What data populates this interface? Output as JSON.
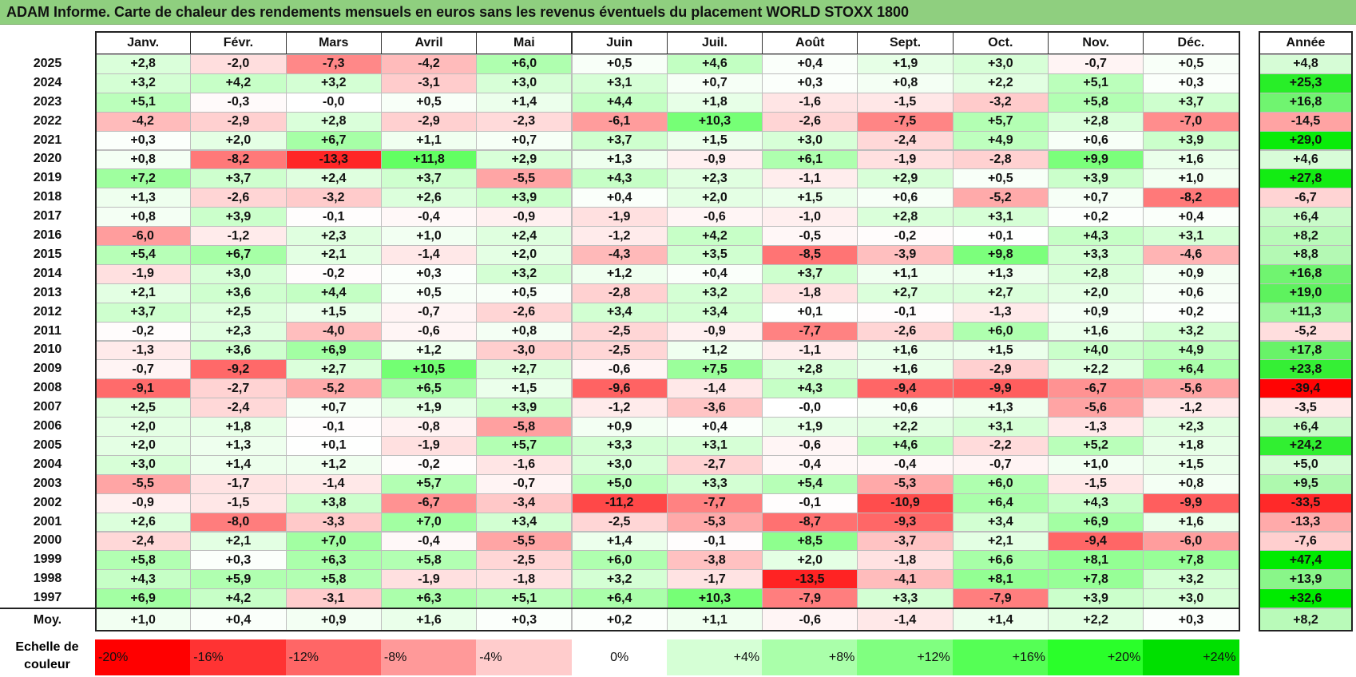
{
  "title": "ADAM Informe. Carte de chaleur des rendements mensuels en euros sans les revenus éventuels du placement WORLD STOXX 1800",
  "chart_data": {
    "type": "heatmap",
    "columns": [
      "Janv.",
      "Févr.",
      "Mars",
      "Avril",
      "Mai",
      "Juin",
      "Juil.",
      "Août",
      "Sept.",
      "Oct.",
      "Nov.",
      "Déc."
    ],
    "annual_label": "Année",
    "rows": [
      {
        "year": "2025",
        "values": [
          "+2,8",
          "-2,0",
          "-7,3",
          "-4,2",
          "+6,0",
          "+0,5",
          "+4,6",
          "+0,4",
          "+1,9",
          "+3,0",
          "-0,7",
          "+0,5"
        ],
        "annual": "+4,8"
      },
      {
        "year": "2024",
        "values": [
          "+3,2",
          "+4,2",
          "+3,2",
          "-3,1",
          "+3,0",
          "+3,1",
          "+0,7",
          "+0,3",
          "+0,8",
          "+2,2",
          "+5,1",
          "+0,3"
        ],
        "annual": "+25,3"
      },
      {
        "year": "2023",
        "values": [
          "+5,1",
          "-0,3",
          "-0,0",
          "+0,5",
          "+1,4",
          "+4,4",
          "+1,8",
          "-1,6",
          "-1,5",
          "-3,2",
          "+5,8",
          "+3,7"
        ],
        "annual": "+16,8"
      },
      {
        "year": "2022",
        "values": [
          "-4,2",
          "-2,9",
          "+2,8",
          "-2,9",
          "-2,3",
          "-6,1",
          "+10,3",
          "-2,6",
          "-7,5",
          "+5,7",
          "+2,8",
          "-7,0"
        ],
        "annual": "-14,5"
      },
      {
        "year": "2021",
        "values": [
          "+0,3",
          "+2,0",
          "+6,7",
          "+1,1",
          "+0,7",
          "+3,7",
          "+1,5",
          "+3,0",
          "-2,4",
          "+4,9",
          "+0,6",
          "+3,9"
        ],
        "annual": "+29,0"
      },
      {
        "year": "2020",
        "values": [
          "+0,8",
          "-8,2",
          "-13,3",
          "+11,8",
          "+2,9",
          "+1,3",
          "-0,9",
          "+6,1",
          "-1,9",
          "-2,8",
          "+9,9",
          "+1,6"
        ],
        "annual": "+4,6"
      },
      {
        "year": "2019",
        "values": [
          "+7,2",
          "+3,7",
          "+2,4",
          "+3,7",
          "-5,5",
          "+4,3",
          "+2,3",
          "-1,1",
          "+2,9",
          "+0,5",
          "+3,9",
          "+1,0"
        ],
        "annual": "+27,8"
      },
      {
        "year": "2018",
        "values": [
          "+1,3",
          "-2,6",
          "-3,2",
          "+2,6",
          "+3,9",
          "+0,4",
          "+2,0",
          "+1,5",
          "+0,6",
          "-5,2",
          "+0,7",
          "-8,2"
        ],
        "annual": "-6,7"
      },
      {
        "year": "2017",
        "values": [
          "+0,8",
          "+3,9",
          "-0,1",
          "-0,4",
          "-0,9",
          "-1,9",
          "-0,6",
          "-1,0",
          "+2,8",
          "+3,1",
          "+0,2",
          "+0,4"
        ],
        "annual": "+6,4"
      },
      {
        "year": "2016",
        "values": [
          "-6,0",
          "-1,2",
          "+2,3",
          "+1,0",
          "+2,4",
          "-1,2",
          "+4,2",
          "-0,5",
          "-0,2",
          "+0,1",
          "+4,3",
          "+3,1"
        ],
        "annual": "+8,2"
      },
      {
        "year": "2015",
        "values": [
          "+5,4",
          "+6,7",
          "+2,1",
          "-1,4",
          "+2,0",
          "-4,3",
          "+3,5",
          "-8,5",
          "-3,9",
          "+9,8",
          "+3,3",
          "-4,6"
        ],
        "annual": "+8,8"
      },
      {
        "year": "2014",
        "values": [
          "-1,9",
          "+3,0",
          "-0,2",
          "+0,3",
          "+3,2",
          "+1,2",
          "+0,4",
          "+3,7",
          "+1,1",
          "+1,3",
          "+2,8",
          "+0,9"
        ],
        "annual": "+16,8"
      },
      {
        "year": "2013",
        "values": [
          "+2,1",
          "+3,6",
          "+4,4",
          "+0,5",
          "+0,5",
          "-2,8",
          "+3,2",
          "-1,8",
          "+2,7",
          "+2,7",
          "+2,0",
          "+0,6"
        ],
        "annual": "+19,0"
      },
      {
        "year": "2012",
        "values": [
          "+3,7",
          "+2,5",
          "+1,5",
          "-0,7",
          "-2,6",
          "+3,4",
          "+3,4",
          "+0,1",
          "-0,1",
          "-1,3",
          "+0,9",
          "+0,2"
        ],
        "annual": "+11,3"
      },
      {
        "year": "2011",
        "values": [
          "-0,2",
          "+2,3",
          "-4,0",
          "-0,6",
          "+0,8",
          "-2,5",
          "-0,9",
          "-7,7",
          "-2,6",
          "+6,0",
          "+1,6",
          "+3,2"
        ],
        "annual": "-5,2"
      },
      {
        "year": "2010",
        "values": [
          "-1,3",
          "+3,6",
          "+6,9",
          "+1,2",
          "-3,0",
          "-2,5",
          "+1,2",
          "-1,1",
          "+1,6",
          "+1,5",
          "+4,0",
          "+4,9"
        ],
        "annual": "+17,8"
      },
      {
        "year": "2009",
        "values": [
          "-0,7",
          "-9,2",
          "+2,7",
          "+10,5",
          "+2,7",
          "-0,6",
          "+7,5",
          "+2,8",
          "+1,6",
          "-2,9",
          "+2,2",
          "+6,4"
        ],
        "annual": "+23,8"
      },
      {
        "year": "2008",
        "values": [
          "-9,1",
          "-2,7",
          "-5,2",
          "+6,5",
          "+1,5",
          "-9,6",
          "-1,4",
          "+4,3",
          "-9,4",
          "-9,9",
          "-6,7",
          "-5,6"
        ],
        "annual": "-39,4"
      },
      {
        "year": "2007",
        "values": [
          "+2,5",
          "-2,4",
          "+0,7",
          "+1,9",
          "+3,9",
          "-1,2",
          "-3,6",
          "-0,0",
          "+0,6",
          "+1,3",
          "-5,6",
          "-1,2"
        ],
        "annual": "-3,5"
      },
      {
        "year": "2006",
        "values": [
          "+2,0",
          "+1,8",
          "-0,1",
          "-0,8",
          "-5,8",
          "+0,9",
          "+0,4",
          "+1,9",
          "+2,2",
          "+3,1",
          "-1,3",
          "+2,3"
        ],
        "annual": "+6,4"
      },
      {
        "year": "2005",
        "values": [
          "+2,0",
          "+1,3",
          "+0,1",
          "-1,9",
          "+5,7",
          "+3,3",
          "+3,1",
          "-0,6",
          "+4,6",
          "-2,2",
          "+5,2",
          "+1,8"
        ],
        "annual": "+24,2"
      },
      {
        "year": "2004",
        "values": [
          "+3,0",
          "+1,4",
          "+1,2",
          "-0,2",
          "-1,6",
          "+3,0",
          "-2,7",
          "-0,4",
          "-0,4",
          "-0,7",
          "+1,0",
          "+1,5"
        ],
        "annual": "+5,0"
      },
      {
        "year": "2003",
        "values": [
          "-5,5",
          "-1,7",
          "-1,4",
          "+5,7",
          "-0,7",
          "+5,0",
          "+3,3",
          "+5,4",
          "-5,3",
          "+6,0",
          "-1,5",
          "+0,8"
        ],
        "annual": "+9,5"
      },
      {
        "year": "2002",
        "values": [
          "-0,9",
          "-1,5",
          "+3,8",
          "-6,7",
          "-3,4",
          "-11,2",
          "-7,7",
          "-0,1",
          "-10,9",
          "+6,4",
          "+4,3",
          "-9,9"
        ],
        "annual": "-33,5"
      },
      {
        "year": "2001",
        "values": [
          "+2,6",
          "-8,0",
          "-3,3",
          "+7,0",
          "+3,4",
          "-2,5",
          "-5,3",
          "-8,7",
          "-9,3",
          "+3,4",
          "+6,9",
          "+1,6"
        ],
        "annual": "-13,3"
      },
      {
        "year": "2000",
        "values": [
          "-2,4",
          "+2,1",
          "+7,0",
          "-0,4",
          "-5,5",
          "+1,4",
          "-0,1",
          "+8,5",
          "-3,7",
          "+2,1",
          "-9,4",
          "-6,0"
        ],
        "annual": "-7,6"
      },
      {
        "year": "1999",
        "values": [
          "+5,8",
          "+0,3",
          "+6,3",
          "+5,8",
          "-2,5",
          "+6,0",
          "-3,8",
          "+2,0",
          "-1,8",
          "+6,6",
          "+8,1",
          "+7,8"
        ],
        "annual": "+47,4"
      },
      {
        "year": "1998",
        "values": [
          "+4,3",
          "+5,9",
          "+5,8",
          "-1,9",
          "-1,8",
          "+3,2",
          "-1,7",
          "-13,5",
          "-4,1",
          "+8,1",
          "+7,8",
          "+3,2"
        ],
        "annual": "+13,9"
      },
      {
        "year": "1997",
        "values": [
          "+6,9",
          "+4,2",
          "-3,1",
          "+6,3",
          "+5,1",
          "+6,4",
          "+10,3",
          "-7,9",
          "+3,3",
          "-7,9",
          "+3,9",
          "+3,0"
        ],
        "annual": "+32,6"
      }
    ],
    "average": {
      "label": "Moy.",
      "values": [
        "+1,0",
        "+0,4",
        "+0,9",
        "+1,6",
        "+0,3",
        "+0,2",
        "+1,1",
        "-0,6",
        "-1,4",
        "+1,4",
        "+2,2",
        "+0,3"
      ],
      "annual": "+8,2"
    },
    "legend": {
      "label": "Echelle de couleur",
      "items": [
        {
          "text": "-20%",
          "value": -20,
          "color": "#ff0000"
        },
        {
          "text": "-16%",
          "value": -16,
          "color": "#ff3333"
        },
        {
          "text": "-12%",
          "value": -12,
          "color": "#ff6666"
        },
        {
          "text": "-8%",
          "value": -8,
          "color": "#ff9999"
        },
        {
          "text": "-4%",
          "value": -4,
          "color": "#ffcccc"
        },
        {
          "text": "0%",
          "value": 0,
          "color": "#ffffff"
        },
        {
          "text": "+4%",
          "value": 4,
          "color": "#d5ffd5"
        },
        {
          "text": "+8%",
          "value": 8,
          "color": "#aaffaa"
        },
        {
          "text": "+12%",
          "value": 12,
          "color": "#80ff80"
        },
        {
          "text": "+16%",
          "value": 16,
          "color": "#55ff55"
        },
        {
          "text": "+20%",
          "value": 20,
          "color": "#2aff2a"
        },
        {
          "text": "+24%",
          "value": 24,
          "color": "#00e000"
        }
      ]
    }
  }
}
